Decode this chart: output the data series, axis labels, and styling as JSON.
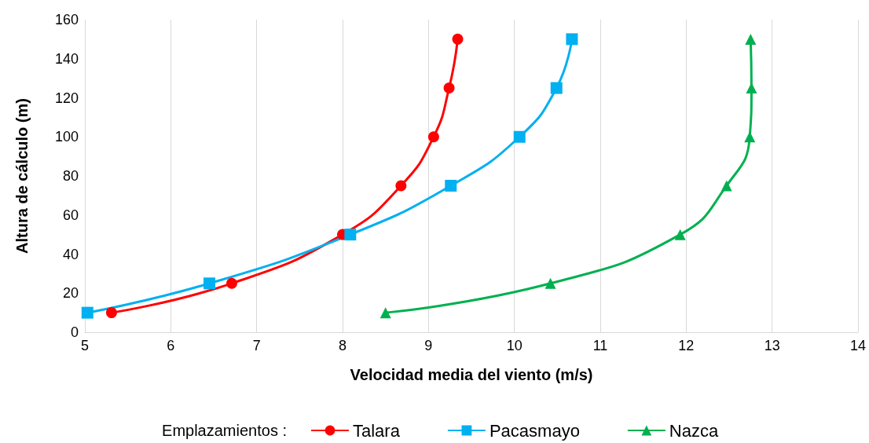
{
  "chart_data": {
    "type": "line",
    "xlabel": "Velocidad media del viento (m/s)",
    "ylabel": "Altura de cálculo (m)",
    "legend_title": "Emplazamientos :",
    "xlim": [
      5,
      14
    ],
    "xticks": [
      5,
      6,
      7,
      8,
      9,
      10,
      11,
      12,
      13,
      14
    ],
    "ylim": [
      0,
      160
    ],
    "yticks": [
      0,
      20,
      40,
      60,
      80,
      100,
      120,
      140,
      160
    ],
    "grid": "x",
    "legend": "bottom",
    "series": [
      {
        "name": "Talara",
        "color": "#ff0000",
        "marker": "circle",
        "x": [
          5.31,
          6.71,
          8.0,
          8.68,
          9.06,
          9.24,
          9.34
        ],
        "values": [
          10,
          25,
          50,
          75,
          100,
          125,
          150
        ]
      },
      {
        "name": "Pacasmayo",
        "color": "#00b0f0",
        "marker": "square",
        "x": [
          5.03,
          6.45,
          8.09,
          9.26,
          10.06,
          10.49,
          10.67
        ],
        "values": [
          10,
          25,
          50,
          75,
          100,
          125,
          150
        ]
      },
      {
        "name": "Nazca",
        "color": "#00b050",
        "marker": "triangle",
        "x": [
          8.5,
          10.42,
          11.93,
          12.47,
          12.74,
          12.76,
          12.75
        ],
        "values": [
          10,
          25,
          50,
          75,
          100,
          125,
          150
        ]
      }
    ]
  }
}
